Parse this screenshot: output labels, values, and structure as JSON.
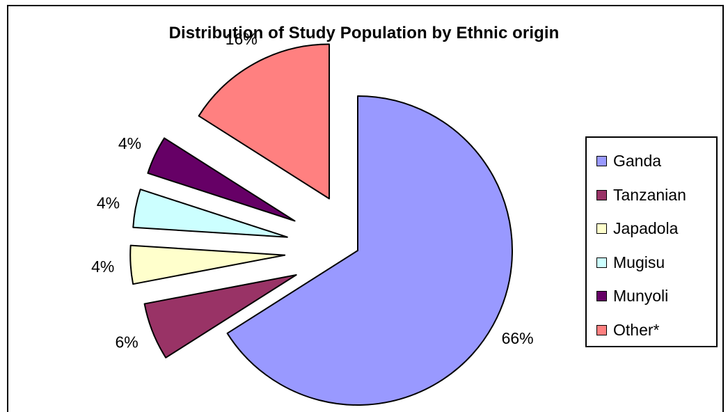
{
  "chart_data": {
    "type": "pie",
    "title": "Distribution of Study Population by Ethnic origin",
    "exploded": true,
    "legend_position": "right",
    "slices": [
      {
        "label": "Ganda",
        "value": 66,
        "display": "66%",
        "color": "#9999ff"
      },
      {
        "label": "Tanzanian",
        "value": 6,
        "display": "6%",
        "color": "#993366"
      },
      {
        "label": "Japadola",
        "value": 4,
        "display": "4%",
        "color": "#ffffcc"
      },
      {
        "label": "Mugisu",
        "value": 4,
        "display": "4%",
        "color": "#ccffff"
      },
      {
        "label": "Munyoli",
        "value": 4,
        "display": "4%",
        "color": "#660066"
      },
      {
        "label": "Other*",
        "value": 16,
        "display": "16%",
        "color": "#ff8080"
      }
    ]
  }
}
